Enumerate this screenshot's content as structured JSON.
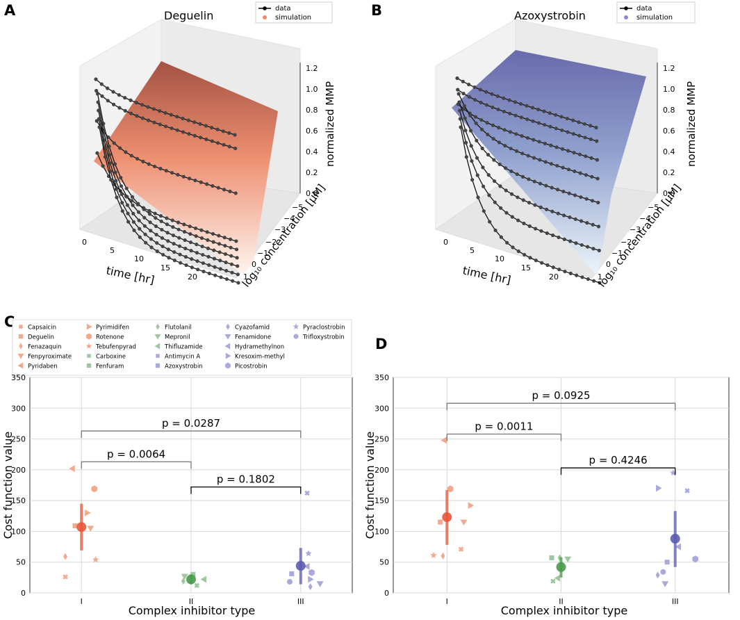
{
  "panel_letters": {
    "a": "A",
    "b": "B",
    "c": "C",
    "d": "D"
  },
  "colors": {
    "complex_I": "#e8553a",
    "complex_II": "#4a9a4a",
    "complex_III": "#5b5bb0",
    "surface_A_top": "#a8503e",
    "surface_A_bottom": "#fff4ee",
    "surface_B_top": "#6a6aa8",
    "surface_B_bottom": "#eef6fb"
  },
  "chart_data": [
    {
      "type": "surface3d",
      "panel": "A",
      "title": "Deguelin",
      "legend": [
        "data",
        "simulation"
      ],
      "xlabel": "time [hr]",
      "ylabel": "log₁₀ concentration [μM]",
      "zlabel": "normalized MMP",
      "x_ticks": [
        "0",
        "5",
        "10",
        "15",
        "20"
      ],
      "y_ticks": [
        "−5",
        "−4",
        "−3",
        "−2",
        "−1",
        "0",
        "1"
      ],
      "z_ticks": [
        "0.0",
        "0.2",
        "0.4",
        "0.6",
        "0.8",
        "1.0",
        "1.2"
      ],
      "curves_end_mmp": [
        0.8,
        0.75,
        0.4,
        0.02,
        0.02,
        0.02,
        0.02,
        0.02,
        0.02
      ]
    },
    {
      "type": "surface3d",
      "panel": "B",
      "title": "Azoxystrobin",
      "legend": [
        "data",
        "simulation"
      ],
      "xlabel": "time [hr]",
      "ylabel": "log₁₀ concentration [μM]",
      "zlabel": "normalized MMP",
      "x_ticks": [
        "0",
        "5",
        "10",
        "15",
        "20"
      ],
      "y_ticks": [
        "−5",
        "−4",
        "−3",
        "−2",
        "−1",
        "0",
        "1"
      ],
      "z_ticks": [
        "0.0",
        "0.2",
        "0.4",
        "0.6",
        "0.8",
        "1.0",
        "1.2"
      ],
      "curves_end_mmp": [
        0.95,
        0.9,
        0.8,
        0.7,
        0.55,
        0.4,
        0.25,
        0.02
      ]
    },
    {
      "type": "scatter",
      "panel": "C",
      "xlabel": "Complex inhibitor type",
      "ylabel": "Cost function value",
      "categories": [
        "I",
        "II",
        "III"
      ],
      "ylim": [
        0,
        350
      ],
      "y_ticks": [
        "0",
        "50",
        "100",
        "150",
        "200",
        "250",
        "300",
        "350"
      ],
      "legend": [
        {
          "name": "Capsaicin",
          "complex": "I",
          "marker": "x"
        },
        {
          "name": "Deguelin",
          "complex": "I",
          "marker": "square"
        },
        {
          "name": "Fenazaquin",
          "complex": "I",
          "marker": "diamond"
        },
        {
          "name": "Fenpyroximate",
          "complex": "I",
          "marker": "tri-down"
        },
        {
          "name": "Pyridaben",
          "complex": "I",
          "marker": "tri-left"
        },
        {
          "name": "Pyrimidifen",
          "complex": "I",
          "marker": "tri-right"
        },
        {
          "name": "Rotenone",
          "complex": "I",
          "marker": "hexagon"
        },
        {
          "name": "Tebufenpyrad",
          "complex": "I",
          "marker": "star"
        },
        {
          "name": "Carboxine",
          "complex": "II",
          "marker": "x"
        },
        {
          "name": "Fenfuram",
          "complex": "II",
          "marker": "square"
        },
        {
          "name": "Flutolanil",
          "complex": "II",
          "marker": "diamond"
        },
        {
          "name": "Mepronil",
          "complex": "II",
          "marker": "tri-down"
        },
        {
          "name": "Thifluzamide",
          "complex": "II",
          "marker": "tri-left"
        },
        {
          "name": "Antimycin A",
          "complex": "III",
          "marker": "x"
        },
        {
          "name": "Azoxystrobin",
          "complex": "III",
          "marker": "square"
        },
        {
          "name": "Cyazofamid",
          "complex": "III",
          "marker": "diamond"
        },
        {
          "name": "Fenamidone",
          "complex": "III",
          "marker": "tri-down"
        },
        {
          "name": "Hydramethylnon",
          "complex": "III",
          "marker": "tri-left"
        },
        {
          "name": "Kresoxim-methyl",
          "complex": "III",
          "marker": "tri-right"
        },
        {
          "name": "Picostrobin",
          "complex": "III",
          "marker": "hexagon"
        },
        {
          "name": "Pyraclostrobin",
          "complex": "III",
          "marker": "star"
        },
        {
          "name": "Trifloxystrobin",
          "complex": "III",
          "marker": "circle"
        }
      ],
      "points": [
        {
          "cat": 0,
          "off": -0.25,
          "y": 26,
          "marker": "x"
        },
        {
          "cat": 0,
          "off": -0.1,
          "y": 109,
          "marker": "square"
        },
        {
          "cat": 0,
          "off": -0.25,
          "y": 59,
          "marker": "diamond"
        },
        {
          "cat": 0,
          "off": 0.14,
          "y": 105,
          "marker": "tri-down"
        },
        {
          "cat": 0,
          "off": -0.14,
          "y": 202,
          "marker": "tri-left"
        },
        {
          "cat": 0,
          "off": 0.09,
          "y": 130,
          "marker": "tri-right"
        },
        {
          "cat": 0,
          "off": 0.2,
          "y": 169,
          "marker": "hexagon"
        },
        {
          "cat": 0,
          "off": 0.22,
          "y": 54,
          "marker": "star"
        },
        {
          "cat": 1,
          "off": 0.09,
          "y": 12,
          "marker": "x"
        },
        {
          "cat": 1,
          "off": 0.03,
          "y": 30,
          "marker": "square"
        },
        {
          "cat": 1,
          "off": -0.12,
          "y": 19,
          "marker": "diamond"
        },
        {
          "cat": 1,
          "off": -0.1,
          "y": 27,
          "marker": "tri-down"
        },
        {
          "cat": 1,
          "off": 0.2,
          "y": 22,
          "marker": "tri-left"
        },
        {
          "cat": 2,
          "off": 0.1,
          "y": 162,
          "marker": "x"
        },
        {
          "cat": 2,
          "off": -0.14,
          "y": 31,
          "marker": "square"
        },
        {
          "cat": 2,
          "off": 0.15,
          "y": 10,
          "marker": "diamond"
        },
        {
          "cat": 2,
          "off": 0.3,
          "y": 15,
          "marker": "tri-down"
        },
        {
          "cat": 2,
          "off": 0.1,
          "y": 43,
          "marker": "tri-left"
        },
        {
          "cat": 2,
          "off": 0.15,
          "y": 22,
          "marker": "tri-right"
        },
        {
          "cat": 2,
          "off": 0.17,
          "y": 33,
          "marker": "hexagon"
        },
        {
          "cat": 2,
          "off": 0.12,
          "y": 64,
          "marker": "star"
        },
        {
          "cat": 2,
          "off": -0.17,
          "y": 18,
          "marker": "circle"
        }
      ],
      "means": [
        {
          "cat": 0,
          "mean": 107,
          "low": 69,
          "high": 145
        },
        {
          "cat": 1,
          "mean": 22,
          "low": 14,
          "high": 30
        },
        {
          "cat": 2,
          "mean": 44,
          "low": 14,
          "high": 73
        }
      ],
      "brackets": [
        {
          "from": 0,
          "to": 1,
          "y": 213,
          "label": "p = 0.0064",
          "color": "#777"
        },
        {
          "from": 1,
          "to": 2,
          "y": 172,
          "label": "p = 0.1802",
          "color": "#000"
        },
        {
          "from": 0,
          "to": 2,
          "y": 263,
          "label": "p = 0.0287",
          "color": "#777"
        }
      ]
    },
    {
      "type": "scatter",
      "panel": "D",
      "xlabel": "Complex inhibitor type",
      "ylabel": "Cost function value",
      "categories": [
        "I",
        "II",
        "III"
      ],
      "ylim": [
        0,
        350
      ],
      "y_ticks": [
        "0",
        "50",
        "100",
        "150",
        "200",
        "250",
        "300",
        "350"
      ],
      "points": [
        {
          "cat": 0,
          "off": 0.21,
          "y": 71,
          "marker": "x"
        },
        {
          "cat": 0,
          "off": -0.1,
          "y": 115,
          "marker": "square"
        },
        {
          "cat": 0,
          "off": -0.06,
          "y": 60,
          "marker": "diamond"
        },
        {
          "cat": 0,
          "off": 0.25,
          "y": 115,
          "marker": "tri-down"
        },
        {
          "cat": 0,
          "off": -0.04,
          "y": 248,
          "marker": "tri-left"
        },
        {
          "cat": 0,
          "off": 0.35,
          "y": 142,
          "marker": "tri-right"
        },
        {
          "cat": 0,
          "off": 0.05,
          "y": 169,
          "marker": "hexagon"
        },
        {
          "cat": 0,
          "off": -0.2,
          "y": 61,
          "marker": "star"
        },
        {
          "cat": 1,
          "off": -0.12,
          "y": 19,
          "marker": "x"
        },
        {
          "cat": 1,
          "off": -0.14,
          "y": 57,
          "marker": "square"
        },
        {
          "cat": 1,
          "off": -0.02,
          "y": 57,
          "marker": "diamond"
        },
        {
          "cat": 1,
          "off": 0.1,
          "y": 55,
          "marker": "tri-down"
        },
        {
          "cat": 1,
          "off": -0.05,
          "y": 24,
          "marker": "tri-left"
        },
        {
          "cat": 2,
          "off": 0.18,
          "y": 166,
          "marker": "x"
        },
        {
          "cat": 2,
          "off": -0.12,
          "y": 50,
          "marker": "square"
        },
        {
          "cat": 2,
          "off": -0.26,
          "y": 29,
          "marker": "diamond"
        },
        {
          "cat": 2,
          "off": -0.15,
          "y": 15,
          "marker": "tri-down"
        },
        {
          "cat": 2,
          "off": 0.05,
          "y": 75,
          "marker": "tri-left"
        },
        {
          "cat": 2,
          "off": -0.25,
          "y": 170,
          "marker": "tri-right"
        },
        {
          "cat": 2,
          "off": 0.3,
          "y": 55,
          "marker": "hexagon"
        },
        {
          "cat": 2,
          "off": -0.03,
          "y": 195,
          "marker": "star"
        },
        {
          "cat": 2,
          "off": -0.18,
          "y": 34,
          "marker": "circle"
        }
      ],
      "means": [
        {
          "cat": 0,
          "mean": 123,
          "low": 78,
          "high": 167
        },
        {
          "cat": 1,
          "mean": 42,
          "low": 25,
          "high": 58
        },
        {
          "cat": 2,
          "mean": 88,
          "low": 42,
          "high": 133
        }
      ],
      "brackets": [
        {
          "from": 0,
          "to": 1,
          "y": 258,
          "label": "p = 0.0011",
          "color": "#777"
        },
        {
          "from": 1,
          "to": 2,
          "y": 203,
          "label": "p = 0.4246",
          "color": "#000"
        },
        {
          "from": 0,
          "to": 2,
          "y": 308,
          "label": "p = 0.0925",
          "color": "#777"
        }
      ]
    }
  ]
}
